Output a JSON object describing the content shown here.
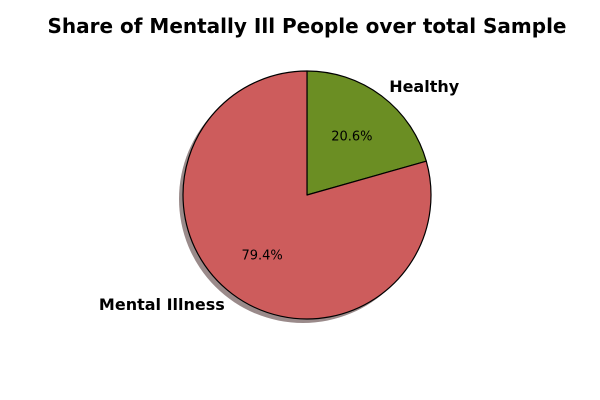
{
  "chart_data": {
    "type": "pie",
    "title": "Share of Mentally Ill People over total Sample",
    "slices": [
      {
        "label": "Healthy",
        "value": 20.6,
        "pct_label": "20.6%",
        "color": "#6b8e23"
      },
      {
        "label": "Mental Illness",
        "value": 79.4,
        "pct_label": "79.4%",
        "color": "#cd5c5c"
      }
    ],
    "shadow": true,
    "start_angle": "top, clockwise",
    "edge_color": "#000000",
    "shadow_color": "#9a8a8a"
  }
}
